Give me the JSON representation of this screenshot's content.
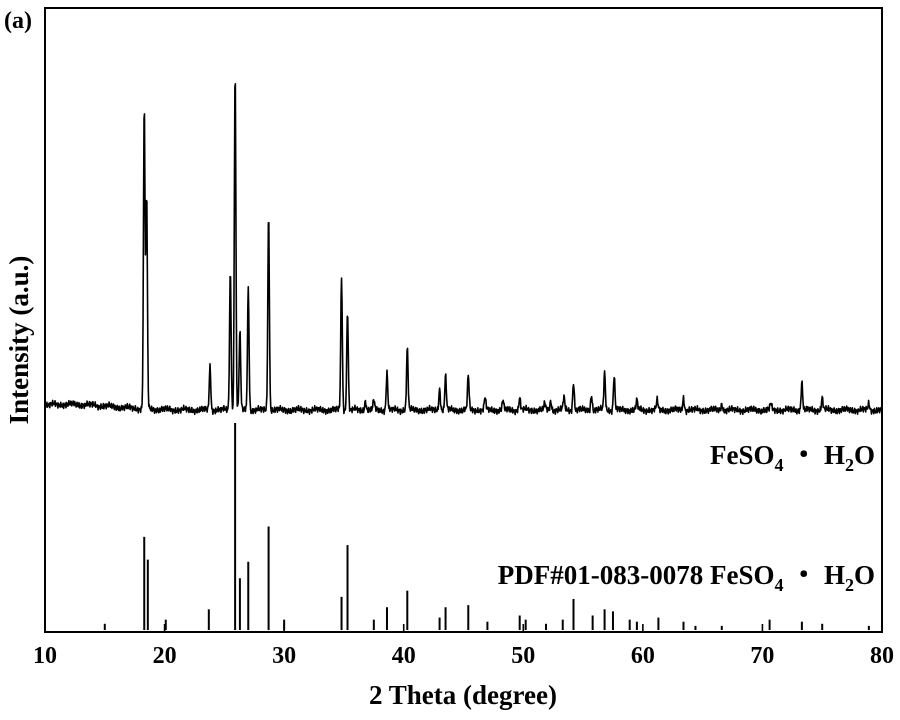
{
  "panel_label": "(a)",
  "chart_data": {
    "type": "line",
    "xlabel": "2 Theta (degree)",
    "ylabel": "Intensity (a.u.)",
    "xlim": [
      10,
      80
    ],
    "x_ticks": [
      10,
      20,
      30,
      40,
      50,
      60,
      70,
      80
    ],
    "grid": false,
    "series": [
      {
        "name": "FeSO₄・H₂O",
        "kind": "measured_pattern",
        "baseline_intensity": 0.045,
        "peaks": [
          {
            "two_theta": 18.3,
            "intensity": 0.98
          },
          {
            "two_theta": 18.5,
            "intensity": 0.69
          },
          {
            "two_theta": 23.8,
            "intensity": 0.14
          },
          {
            "two_theta": 25.5,
            "intensity": 0.45
          },
          {
            "two_theta": 25.9,
            "intensity": 1.1
          },
          {
            "two_theta": 26.3,
            "intensity": 0.25
          },
          {
            "two_theta": 27.0,
            "intensity": 0.39
          },
          {
            "two_theta": 28.7,
            "intensity": 0.63
          },
          {
            "two_theta": 34.8,
            "intensity": 0.43
          },
          {
            "two_theta": 35.3,
            "intensity": 0.32
          },
          {
            "two_theta": 36.8,
            "intensity": 0.03
          },
          {
            "two_theta": 37.5,
            "intensity": 0.03
          },
          {
            "two_theta": 38.6,
            "intensity": 0.12
          },
          {
            "two_theta": 40.3,
            "intensity": 0.2
          },
          {
            "two_theta": 43.0,
            "intensity": 0.07
          },
          {
            "two_theta": 43.5,
            "intensity": 0.11
          },
          {
            "two_theta": 45.4,
            "intensity": 0.11
          },
          {
            "two_theta": 46.8,
            "intensity": 0.04
          },
          {
            "two_theta": 48.3,
            "intensity": 0.03
          },
          {
            "two_theta": 49.7,
            "intensity": 0.04
          },
          {
            "two_theta": 51.8,
            "intensity": 0.02
          },
          {
            "two_theta": 52.3,
            "intensity": 0.03
          },
          {
            "two_theta": 53.4,
            "intensity": 0.04
          },
          {
            "two_theta": 54.2,
            "intensity": 0.09
          },
          {
            "two_theta": 55.7,
            "intensity": 0.05
          },
          {
            "two_theta": 56.8,
            "intensity": 0.12
          },
          {
            "two_theta": 57.6,
            "intensity": 0.11
          },
          {
            "two_theta": 59.5,
            "intensity": 0.03
          },
          {
            "two_theta": 61.2,
            "intensity": 0.03
          },
          {
            "two_theta": 63.4,
            "intensity": 0.04
          },
          {
            "two_theta": 66.6,
            "intensity": 0.02
          },
          {
            "two_theta": 70.7,
            "intensity": 0.02
          },
          {
            "two_theta": 73.3,
            "intensity": 0.09
          },
          {
            "two_theta": 75.0,
            "intensity": 0.04
          },
          {
            "two_theta": 78.9,
            "intensity": 0.02
          }
        ]
      },
      {
        "name": "PDF#01-083-0078 FeSO₄・H₂O",
        "kind": "reference_sticks",
        "sticks": [
          {
            "two_theta": 15.0,
            "intensity": 0.03
          },
          {
            "two_theta": 18.3,
            "intensity": 0.45
          },
          {
            "two_theta": 18.6,
            "intensity": 0.34
          },
          {
            "two_theta": 20.1,
            "intensity": 0.05
          },
          {
            "two_theta": 23.7,
            "intensity": 0.1
          },
          {
            "two_theta": 25.9,
            "intensity": 1.0
          },
          {
            "two_theta": 26.3,
            "intensity": 0.25
          },
          {
            "two_theta": 27.0,
            "intensity": 0.33
          },
          {
            "two_theta": 28.7,
            "intensity": 0.5
          },
          {
            "two_theta": 30.0,
            "intensity": 0.05
          },
          {
            "two_theta": 34.8,
            "intensity": 0.16
          },
          {
            "two_theta": 35.3,
            "intensity": 0.41
          },
          {
            "two_theta": 37.5,
            "intensity": 0.05
          },
          {
            "two_theta": 38.6,
            "intensity": 0.11
          },
          {
            "two_theta": 40.3,
            "intensity": 0.19
          },
          {
            "two_theta": 43.0,
            "intensity": 0.06
          },
          {
            "two_theta": 43.5,
            "intensity": 0.11
          },
          {
            "two_theta": 45.4,
            "intensity": 0.12
          },
          {
            "two_theta": 47.0,
            "intensity": 0.04
          },
          {
            "two_theta": 49.7,
            "intensity": 0.07
          },
          {
            "two_theta": 50.2,
            "intensity": 0.05
          },
          {
            "two_theta": 51.9,
            "intensity": 0.03
          },
          {
            "two_theta": 53.3,
            "intensity": 0.05
          },
          {
            "two_theta": 54.2,
            "intensity": 0.15
          },
          {
            "two_theta": 55.8,
            "intensity": 0.07
          },
          {
            "two_theta": 56.8,
            "intensity": 0.1
          },
          {
            "two_theta": 57.5,
            "intensity": 0.09
          },
          {
            "two_theta": 58.9,
            "intensity": 0.05
          },
          {
            "two_theta": 59.5,
            "intensity": 0.04
          },
          {
            "two_theta": 61.3,
            "intensity": 0.06
          },
          {
            "two_theta": 63.4,
            "intensity": 0.04
          },
          {
            "two_theta": 64.4,
            "intensity": 0.02
          },
          {
            "two_theta": 66.6,
            "intensity": 0.02
          },
          {
            "two_theta": 70.6,
            "intensity": 0.05
          },
          {
            "two_theta": 73.3,
            "intensity": 0.04
          },
          {
            "two_theta": 75.0,
            "intensity": 0.03
          },
          {
            "two_theta": 78.9,
            "intensity": 0.02
          }
        ]
      }
    ]
  },
  "labels": {
    "measured": {
      "prefix": "FeSO",
      "sub1": "4",
      "mid": " ・ H",
      "sub2": "2",
      "suffix": "O"
    },
    "reference": {
      "prefix": "PDF#01-083-0078 FeSO",
      "sub1": "4",
      "mid": " ・ H",
      "sub2": "2",
      "suffix": "O"
    }
  }
}
